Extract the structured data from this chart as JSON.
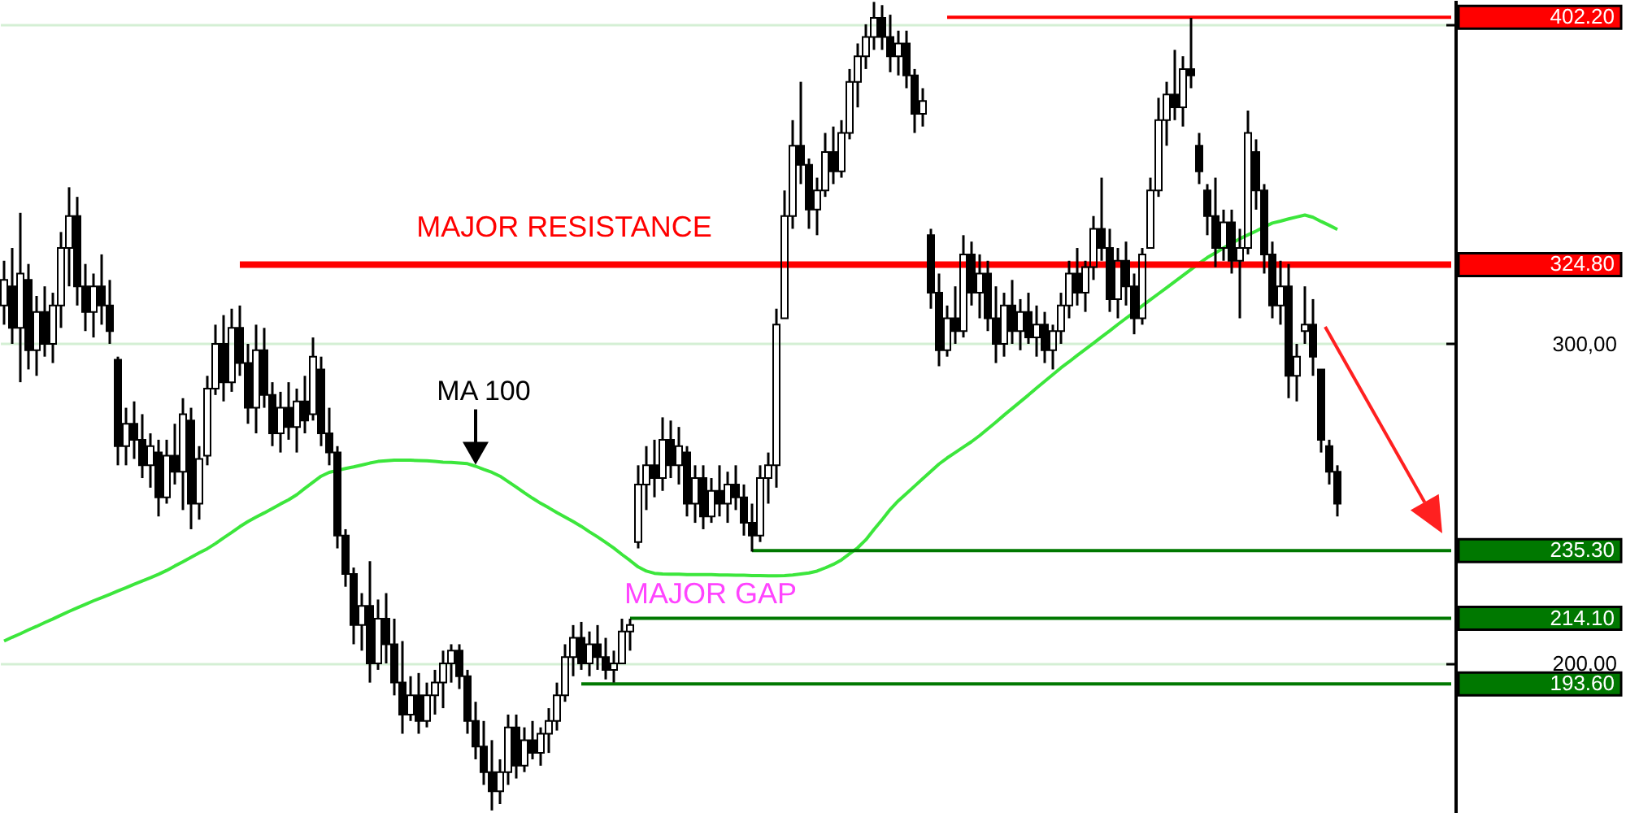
{
  "chart_data": {
    "type": "candlestick",
    "color": "#000000",
    "ylim": [
      153.2,
      407.6
    ],
    "yticks": [
      {
        "value": 200,
        "label": "200,00"
      },
      {
        "value": 300,
        "label": "300,00"
      },
      {
        "value": 400,
        "label": null
      }
    ],
    "grid": true,
    "annotations": [
      {
        "text": "MAJOR RESISTANCE",
        "y": 324.8
      },
      "MAJOR GAP"
    ],
    "categories": [
      null,
      null,
      null,
      null,
      null,
      null,
      null,
      null,
      null,
      null,
      null,
      null,
      null,
      null,
      null,
      null,
      null,
      null,
      null,
      null,
      null,
      null,
      null,
      null,
      null,
      null,
      null,
      null,
      null,
      null,
      null,
      null,
      null,
      null,
      null,
      null,
      null,
      null,
      null,
      null,
      null,
      null,
      null,
      null,
      null,
      null,
      null,
      null,
      null,
      null,
      null,
      null,
      null,
      null,
      null,
      null,
      null,
      null,
      null,
      null,
      null,
      null,
      null,
      null,
      null,
      null,
      null,
      null,
      null,
      null,
      null,
      null,
      null,
      null,
      null,
      null,
      null,
      null,
      null,
      null,
      null,
      null,
      null,
      null,
      null,
      null,
      null,
      null,
      null,
      null,
      null,
      null,
      null,
      null,
      null,
      null,
      null,
      null,
      null,
      null,
      null,
      null,
      null,
      null,
      null,
      null,
      null,
      null,
      null,
      null,
      null,
      null,
      null,
      null,
      null,
      null,
      null,
      null,
      null,
      null,
      null,
      null,
      null,
      null,
      null,
      null,
      null,
      null,
      null,
      null,
      null,
      null,
      null,
      null,
      null,
      null,
      null,
      null,
      null,
      null,
      null,
      null,
      null,
      null,
      null,
      null,
      null,
      null,
      null,
      null,
      null,
      null,
      null,
      null,
      null,
      null,
      null,
      null,
      null,
      null,
      null,
      null,
      null,
      null,
      null,
      null,
      null,
      null,
      null,
      null,
      null,
      null,
      null,
      null,
      null,
      null,
      null,
      null,
      null
    ],
    "ohlc": [
      [
        312,
        326,
        306,
        320
      ],
      [
        318,
        330,
        300,
        305
      ],
      [
        305,
        341,
        288,
        322
      ],
      [
        320,
        325,
        292,
        298
      ],
      [
        298,
        315,
        290,
        310
      ],
      [
        310,
        318,
        296,
        300
      ],
      [
        300,
        316,
        294,
        312
      ],
      [
        312,
        335,
        305,
        330
      ],
      [
        330,
        349,
        318,
        340
      ],
      [
        340,
        346,
        312,
        318
      ],
      [
        318,
        325,
        304,
        310
      ],
      [
        310,
        322,
        302,
        318
      ],
      [
        318,
        328,
        306,
        312
      ],
      [
        312,
        320,
        300,
        304
      ],
      [
        295,
        296,
        262,
        268
      ],
      [
        268,
        280,
        262,
        275
      ],
      [
        275,
        282,
        264,
        270
      ],
      [
        270,
        278,
        258,
        262
      ],
      [
        262,
        272,
        255,
        268
      ],
      [
        266,
        270,
        246,
        252
      ],
      [
        252,
        270,
        250,
        265
      ],
      [
        265,
        275,
        256,
        260
      ],
      [
        260,
        283,
        248,
        278
      ],
      [
        276,
        280,
        242,
        250
      ],
      [
        250,
        268,
        245,
        264
      ],
      [
        265,
        290,
        262,
        286
      ],
      [
        286,
        306,
        284,
        300
      ],
      [
        300,
        309,
        282,
        288
      ],
      [
        288,
        311,
        285,
        305
      ],
      [
        305,
        312,
        290,
        294
      ],
      [
        294,
        300,
        275,
        280
      ],
      [
        280,
        306,
        272,
        298
      ],
      [
        298,
        305,
        280,
        284
      ],
      [
        284,
        288,
        268,
        272
      ],
      [
        272,
        285,
        266,
        280
      ],
      [
        280,
        288,
        270,
        274
      ],
      [
        274,
        286,
        266,
        282
      ],
      [
        282,
        290,
        272,
        276
      ],
      [
        278,
        302,
        276,
        296
      ],
      [
        292,
        296,
        268,
        272
      ],
      [
        272,
        280,
        262,
        266
      ],
      [
        266,
        268,
        236,
        240
      ],
      [
        240,
        242,
        224,
        228
      ],
      [
        228,
        230,
        206,
        212
      ],
      [
        212,
        222,
        204,
        218
      ],
      [
        218,
        232,
        194,
        200
      ],
      [
        200,
        220,
        198,
        214
      ],
      [
        214,
        222,
        200,
        206
      ],
      [
        206,
        214,
        190,
        194
      ],
      [
        194,
        207,
        178,
        184
      ],
      [
        184,
        196,
        182,
        190
      ],
      [
        190,
        197,
        178,
        182
      ],
      [
        182,
        194,
        180,
        190
      ],
      [
        190,
        198,
        184,
        194
      ],
      [
        194,
        204,
        186,
        200
      ],
      [
        200,
        206,
        194,
        204
      ],
      [
        204,
        206,
        192,
        196
      ],
      [
        196,
        198,
        178,
        182
      ],
      [
        182,
        188,
        170,
        174
      ],
      [
        174,
        182,
        162,
        166
      ],
      [
        166,
        176,
        154,
        160
      ],
      [
        160,
        170,
        156,
        166
      ],
      [
        166,
        184,
        162,
        180
      ],
      [
        180,
        184,
        164,
        168
      ],
      [
        168,
        180,
        166,
        176
      ],
      [
        176,
        182,
        170,
        172
      ],
      [
        172,
        180,
        168,
        178
      ],
      [
        178,
        186,
        172,
        182
      ],
      [
        182,
        194,
        179,
        190
      ],
      [
        190,
        206,
        188,
        202
      ],
      [
        202,
        212,
        196,
        208
      ],
      [
        208,
        213,
        198,
        200
      ],
      [
        200,
        210,
        196,
        206
      ],
      [
        206,
        212,
        198,
        202
      ],
      [
        202,
        208,
        195,
        198
      ],
      [
        198,
        204,
        194,
        200
      ],
      [
        200,
        214,
        200,
        210
      ],
      [
        210,
        214,
        204,
        212
      ],
      [
        238,
        262,
        236,
        256
      ],
      [
        256,
        268,
        248,
        262
      ],
      [
        262,
        270,
        252,
        258
      ],
      [
        258,
        277,
        254,
        270
      ],
      [
        270,
        276,
        258,
        262
      ],
      [
        262,
        274,
        256,
        268
      ],
      [
        266,
        268,
        246,
        250
      ],
      [
        250,
        262,
        244,
        258
      ],
      [
        258,
        262,
        242,
        246
      ],
      [
        246,
        258,
        244,
        254
      ],
      [
        254,
        262,
        246,
        250
      ],
      [
        250,
        260,
        244,
        256
      ],
      [
        256,
        262,
        248,
        252
      ],
      [
        252,
        256,
        240,
        244
      ],
      [
        244,
        250,
        235,
        240
      ],
      [
        240,
        262,
        238,
        258
      ],
      [
        258,
        266,
        250,
        262
      ],
      [
        262,
        311,
        255,
        306
      ],
      [
        308,
        348,
        308,
        340
      ],
      [
        340,
        370,
        336,
        362
      ],
      [
        362,
        382,
        350,
        356
      ],
      [
        356,
        358,
        336,
        342
      ],
      [
        342,
        352,
        334,
        348
      ],
      [
        348,
        366,
        346,
        360
      ],
      [
        360,
        368,
        350,
        354
      ],
      [
        354,
        370,
        352,
        366
      ],
      [
        366,
        386,
        364,
        382
      ],
      [
        382,
        394,
        374,
        390
      ],
      [
        390,
        400,
        386,
        396
      ],
      [
        396,
        407,
        392,
        402
      ],
      [
        402,
        406,
        392,
        396
      ],
      [
        396,
        403,
        385,
        390
      ],
      [
        390,
        398,
        384,
        394
      ],
      [
        394,
        398,
        380,
        384
      ],
      [
        384,
        386,
        366,
        372
      ],
      [
        372,
        380,
        368,
        376
      ],
      [
        334,
        336,
        311,
        316
      ],
      [
        316,
        322,
        293,
        298
      ],
      [
        298,
        312,
        296,
        308
      ],
      [
        308,
        318,
        300,
        304
      ],
      [
        304,
        334,
        302,
        328
      ],
      [
        328,
        332,
        312,
        316
      ],
      [
        316,
        328,
        308,
        322
      ],
      [
        322,
        326,
        304,
        308
      ],
      [
        308,
        318,
        294,
        300
      ],
      [
        300,
        316,
        296,
        312
      ],
      [
        312,
        320,
        300,
        304
      ],
      [
        304,
        314,
        298,
        310
      ],
      [
        310,
        316,
        300,
        302
      ],
      [
        302,
        312,
        296,
        306
      ],
      [
        306,
        310,
        294,
        298
      ],
      [
        298,
        306,
        292,
        304
      ],
      [
        304,
        316,
        300,
        312
      ],
      [
        312,
        326,
        308,
        322
      ],
      [
        322,
        330,
        312,
        316
      ],
      [
        316,
        326,
        310,
        324
      ],
      [
        324,
        340,
        320,
        336
      ],
      [
        336,
        352,
        326,
        330
      ],
      [
        330,
        336,
        310,
        314
      ],
      [
        314,
        330,
        308,
        326
      ],
      [
        326,
        332,
        312,
        318
      ],
      [
        318,
        322,
        303,
        308
      ],
      [
        308,
        330,
        306,
        328
      ],
      [
        330,
        352,
        330,
        348
      ],
      [
        348,
        377,
        346,
        370
      ],
      [
        370,
        382,
        362,
        378
      ],
      [
        378,
        392,
        370,
        374
      ],
      [
        374,
        390,
        368,
        386
      ],
      [
        386,
        402,
        380,
        384
      ],
      [
        362,
        366,
        350,
        354
      ],
      [
        348,
        350,
        334,
        340
      ],
      [
        340,
        352,
        324,
        330
      ],
      [
        330,
        342,
        326,
        338
      ],
      [
        338,
        342,
        322,
        326
      ],
      [
        326,
        336,
        308,
        330
      ],
      [
        330,
        373,
        328,
        366
      ],
      [
        360,
        364,
        342,
        348
      ],
      [
        348,
        350,
        322,
        328
      ],
      [
        328,
        332,
        308,
        312
      ],
      [
        312,
        326,
        306,
        318
      ],
      [
        318,
        325,
        283,
        290
      ],
      [
        290,
        300,
        282,
        296
      ],
      [
        304,
        318,
        300,
        306
      ],
      [
        306,
        314,
        290,
        296
      ],
      [
        292,
        292,
        266,
        270
      ],
      [
        268,
        270,
        256,
        260
      ],
      [
        260,
        262,
        246,
        250
      ],
      null,
      null,
      null,
      null,
      null,
      null,
      null,
      null,
      null,
      null,
      null,
      null,
      null,
      null
    ],
    "series": [
      {
        "type": "line",
        "name": "MA 100",
        "color": "#3ce63c",
        "values": [
          207.0,
          208.2,
          209.3,
          210.5,
          211.6,
          212.8,
          213.9,
          215.1,
          216.3,
          217.4,
          218.5,
          219.6,
          220.6,
          221.6,
          222.7,
          223.7,
          224.8,
          225.8,
          226.8,
          227.9,
          229.1,
          230.5,
          231.8,
          233.2,
          234.6,
          235.9,
          237.5,
          239.3,
          241.0,
          242.8,
          244.4,
          245.8,
          247.1,
          248.5,
          249.9,
          251.2,
          252.8,
          254.8,
          256.7,
          258.6,
          259.8,
          260.4,
          261.0,
          261.5,
          262.1,
          262.7,
          263.2,
          263.4,
          263.6,
          263.6,
          263.6,
          263.5,
          263.4,
          263.2,
          263.0,
          262.9,
          262.7,
          262.5,
          261.7,
          260.7,
          259.8,
          258.6,
          256.9,
          255.2,
          253.4,
          251.7,
          250.1,
          248.7,
          247.2,
          245.8,
          244.4,
          242.9,
          241.2,
          239.6,
          237.9,
          236.1,
          234.1,
          232.2,
          230.2,
          228.9,
          228.2,
          228.0,
          227.9,
          227.9,
          227.8,
          227.8,
          227.8,
          227.8,
          227.7,
          227.7,
          227.6,
          227.6,
          227.5,
          227.5,
          227.4,
          227.4,
          227.5,
          227.7,
          228.0,
          228.3,
          228.9,
          229.9,
          231.0,
          232.4,
          234.3,
          236.2,
          238.7,
          241.9,
          245.0,
          248.2,
          250.9,
          253.2,
          255.5,
          257.8,
          260.1,
          262.4,
          264.3,
          266.0,
          267.7,
          269.4,
          271.3,
          273.4,
          275.5,
          277.7,
          279.8,
          281.9,
          284.0,
          286.2,
          288.3,
          290.4,
          292.5,
          294.4,
          296.4,
          298.3,
          300.2,
          302.2,
          304.1,
          306.1,
          308.0,
          309.9,
          311.9,
          313.8,
          315.7,
          317.6,
          319.5,
          321.4,
          323.3,
          325.2,
          327.0,
          328.5,
          330.0,
          331.5,
          332.9,
          334.1,
          335.3,
          336.6,
          337.8,
          338.4,
          339.1,
          339.7,
          340.3,
          339.6,
          338.3,
          337.1,
          335.8,
          null,
          null,
          null,
          null,
          null,
          null,
          null,
          null,
          null,
          null,
          null,
          null,
          null,
          null
        ]
      },
      {
        "type": "line",
        "name": "402.20",
        "color": "#ff0000",
        "values": [
          null,
          null,
          null,
          null,
          null,
          null,
          null,
          null,
          null,
          null,
          null,
          null,
          null,
          null,
          null,
          null,
          null,
          null,
          null,
          null,
          null,
          null,
          null,
          null,
          null,
          null,
          null,
          null,
          null,
          null,
          null,
          null,
          null,
          null,
          null,
          null,
          null,
          null,
          null,
          null,
          null,
          null,
          null,
          null,
          null,
          null,
          null,
          null,
          null,
          null,
          null,
          null,
          null,
          null,
          null,
          null,
          null,
          null,
          null,
          null,
          null,
          null,
          null,
          null,
          null,
          null,
          null,
          null,
          null,
          null,
          null,
          null,
          null,
          null,
          null,
          null,
          null,
          null,
          null,
          null,
          null,
          null,
          null,
          null,
          null,
          null,
          null,
          null,
          null,
          null,
          null,
          null,
          null,
          null,
          null,
          null,
          null,
          null,
          null,
          null,
          null,
          null,
          null,
          null,
          null,
          null,
          null,
          null,
          null,
          null,
          null,
          null,
          null,
          null,
          null,
          null,
          402.2,
          402.2,
          402.2,
          402.2,
          402.2,
          402.2,
          402.2,
          402.2,
          402.2,
          402.2,
          402.2,
          402.2,
          402.2,
          402.2,
          402.2,
          402.2,
          402.2,
          402.2,
          402.2,
          402.2,
          402.2,
          402.2,
          402.2,
          402.2,
          402.2,
          402.2,
          402.2,
          402.2,
          402.2,
          402.2,
          402.2,
          402.2,
          402.2,
          402.2,
          402.2,
          402.2,
          402.2,
          402.2,
          402.2,
          402.2,
          402.2,
          402.2,
          402.2,
          402.2,
          402.2,
          402.2,
          402.2,
          402.2,
          402.2,
          402.2,
          402.2,
          402.2,
          402.2,
          402.2,
          402.2,
          402.2,
          402.2,
          402.2,
          402.2,
          402.2,
          402.2,
          402.2,
          402.2
        ]
      },
      {
        "type": "line",
        "name": "324.80",
        "color": "#ff0000",
        "values": [
          null,
          null,
          null,
          null,
          null,
          null,
          null,
          null,
          null,
          null,
          null,
          null,
          null,
          null,
          null,
          null,
          null,
          null,
          null,
          null,
          null,
          null,
          null,
          null,
          null,
          null,
          null,
          null,
          null,
          324.8,
          324.8,
          324.8,
          324.8,
          324.8,
          324.8,
          324.8,
          324.8,
          324.8,
          324.8,
          324.8,
          324.8,
          324.8,
          324.8,
          324.8,
          324.8,
          324.8,
          324.8,
          324.8,
          324.8,
          324.8,
          324.8,
          324.8,
          324.8,
          324.8,
          324.8,
          324.8,
          324.8,
          324.8,
          324.8,
          324.8,
          324.8,
          324.8,
          324.8,
          324.8,
          324.8,
          324.8,
          324.8,
          324.8,
          324.8,
          324.8,
          324.8,
          324.8,
          324.8,
          324.8,
          324.8,
          324.8,
          324.8,
          324.8,
          324.8,
          324.8,
          324.8,
          324.8,
          324.8,
          324.8,
          324.8,
          324.8,
          324.8,
          324.8,
          324.8,
          324.8,
          324.8,
          324.8,
          324.8,
          324.8,
          324.8,
          324.8,
          324.8,
          324.8,
          324.8,
          324.8,
          324.8,
          324.8,
          324.8,
          324.8,
          324.8,
          324.8,
          324.8,
          324.8,
          324.8,
          324.8,
          324.8,
          324.8,
          324.8,
          324.8,
          324.8,
          324.8,
          324.8,
          324.8,
          324.8,
          324.8,
          324.8,
          324.8,
          324.8,
          324.8,
          324.8,
          324.8,
          324.8,
          324.8,
          324.8,
          324.8,
          324.8,
          324.8,
          324.8,
          324.8,
          324.8,
          324.8,
          324.8,
          324.8,
          324.8,
          324.8,
          324.8,
          324.8,
          324.8,
          324.8,
          324.8,
          324.8,
          324.8,
          324.8,
          324.8,
          324.8,
          324.8,
          324.8,
          324.8,
          324.8,
          324.8,
          324.8,
          324.8,
          324.8,
          324.8,
          324.8,
          324.8,
          324.8,
          324.8,
          324.8,
          324.8,
          324.8,
          324.8,
          324.8,
          324.8,
          324.8,
          324.8,
          324.8,
          324.8,
          324.8,
          324.8,
          324.8,
          324.8,
          324.8,
          324.8
        ]
      },
      {
        "type": "line",
        "name": "235.30",
        "color": "#007800",
        "values": [
          null,
          null,
          null,
          null,
          null,
          null,
          null,
          null,
          null,
          null,
          null,
          null,
          null,
          null,
          null,
          null,
          null,
          null,
          null,
          null,
          null,
          null,
          null,
          null,
          null,
          null,
          null,
          null,
          null,
          null,
          null,
          null,
          null,
          null,
          null,
          null,
          null,
          null,
          null,
          null,
          null,
          null,
          null,
          null,
          null,
          null,
          null,
          null,
          null,
          null,
          null,
          null,
          null,
          null,
          null,
          null,
          null,
          null,
          null,
          null,
          null,
          null,
          null,
          null,
          null,
          null,
          null,
          null,
          null,
          null,
          null,
          null,
          null,
          null,
          null,
          null,
          null,
          null,
          null,
          null,
          null,
          null,
          null,
          null,
          null,
          null,
          null,
          null,
          null,
          null,
          null,
          null,
          235.3,
          235.3,
          235.3,
          235.3,
          235.3,
          235.3,
          235.3,
          235.3,
          235.3,
          235.3,
          235.3,
          235.3,
          235.3,
          235.3,
          235.3,
          235.3,
          235.3,
          235.3,
          235.3,
          235.3,
          235.3,
          235.3,
          235.3,
          235.3,
          235.3,
          235.3,
          235.3,
          235.3,
          235.3,
          235.3,
          235.3,
          235.3,
          235.3,
          235.3,
          235.3,
          235.3,
          235.3,
          235.3,
          235.3,
          235.3,
          235.3,
          235.3,
          235.3,
          235.3,
          235.3,
          235.3,
          235.3,
          235.3,
          235.3,
          235.3,
          235.3,
          235.3,
          235.3,
          235.3,
          235.3,
          235.3,
          235.3,
          235.3,
          235.3,
          235.3,
          235.3,
          235.3,
          235.3,
          235.3,
          235.3,
          235.3,
          235.3,
          235.3,
          235.3,
          235.3,
          235.3,
          235.3,
          235.3,
          235.3,
          235.3,
          235.3,
          235.3,
          235.3,
          235.3,
          235.3,
          235.3,
          235.3,
          235.3,
          235.3,
          235.3,
          235.3,
          235.3
        ]
      },
      {
        "type": "line",
        "name": "214.10",
        "color": "#007800",
        "values": [
          null,
          null,
          null,
          null,
          null,
          null,
          null,
          null,
          null,
          null,
          null,
          null,
          null,
          null,
          null,
          null,
          null,
          null,
          null,
          null,
          null,
          null,
          null,
          null,
          null,
          null,
          null,
          null,
          null,
          null,
          null,
          null,
          null,
          null,
          null,
          null,
          null,
          null,
          null,
          null,
          null,
          null,
          null,
          null,
          null,
          null,
          null,
          null,
          null,
          null,
          null,
          null,
          null,
          null,
          null,
          null,
          null,
          null,
          null,
          null,
          null,
          null,
          null,
          null,
          null,
          null,
          null,
          null,
          null,
          null,
          null,
          null,
          null,
          null,
          null,
          null,
          null,
          214.1,
          214.1,
          214.1,
          214.1,
          214.1,
          214.1,
          214.1,
          214.1,
          214.1,
          214.1,
          214.1,
          214.1,
          214.1,
          214.1,
          214.1,
          214.1,
          214.1,
          214.1,
          214.1,
          214.1,
          214.1,
          214.1,
          214.1,
          214.1,
          214.1,
          214.1,
          214.1,
          214.1,
          214.1,
          214.1,
          214.1,
          214.1,
          214.1,
          214.1,
          214.1,
          214.1,
          214.1,
          214.1,
          214.1,
          214.1,
          214.1,
          214.1,
          214.1,
          214.1,
          214.1,
          214.1,
          214.1,
          214.1,
          214.1,
          214.1,
          214.1,
          214.1,
          214.1,
          214.1,
          214.1,
          214.1,
          214.1,
          214.1,
          214.1,
          214.1,
          214.1,
          214.1,
          214.1,
          214.1,
          214.1,
          214.1,
          214.1,
          214.1,
          214.1,
          214.1,
          214.1,
          214.1,
          214.1,
          214.1,
          214.1,
          214.1,
          214.1,
          214.1,
          214.1,
          214.1,
          214.1,
          214.1,
          214.1,
          214.1,
          214.1,
          214.1,
          214.1,
          214.1,
          214.1,
          214.1,
          214.1,
          214.1,
          214.1,
          214.1,
          214.1,
          214.1,
          214.1,
          214.1,
          214.1,
          214.1,
          214.1,
          214.1
        ]
      },
      {
        "type": "line",
        "name": "193.60",
        "color": "#007800",
        "values": [
          null,
          null,
          null,
          null,
          null,
          null,
          null,
          null,
          null,
          null,
          null,
          null,
          null,
          null,
          null,
          null,
          null,
          null,
          null,
          null,
          null,
          null,
          null,
          null,
          null,
          null,
          null,
          null,
          null,
          null,
          null,
          null,
          null,
          null,
          null,
          null,
          null,
          null,
          null,
          null,
          null,
          null,
          null,
          null,
          null,
          null,
          null,
          null,
          null,
          null,
          null,
          null,
          null,
          null,
          null,
          null,
          null,
          null,
          null,
          null,
          null,
          null,
          null,
          null,
          null,
          null,
          null,
          null,
          null,
          null,
          null,
          193.6,
          193.6,
          193.6,
          193.6,
          193.6,
          193.6,
          193.6,
          193.6,
          193.6,
          193.6,
          193.6,
          193.6,
          193.6,
          193.6,
          193.6,
          193.6,
          193.6,
          193.6,
          193.6,
          193.6,
          193.6,
          193.6,
          193.6,
          193.6,
          193.6,
          193.6,
          193.6,
          193.6,
          193.6,
          193.6,
          193.6,
          193.6,
          193.6,
          193.6,
          193.6,
          193.6,
          193.6,
          193.6,
          193.6,
          193.6,
          193.6,
          193.6,
          193.6,
          193.6,
          193.6,
          193.6,
          193.6,
          193.6,
          193.6,
          193.6,
          193.6,
          193.6,
          193.6,
          193.6,
          193.6,
          193.6,
          193.6,
          193.6,
          193.6,
          193.6,
          193.6,
          193.6,
          193.6,
          193.6,
          193.6,
          193.6,
          193.6,
          193.6,
          193.6,
          193.6,
          193.6,
          193.6,
          193.6,
          193.6,
          193.6,
          193.6,
          193.6,
          193.6,
          193.6,
          193.6,
          193.6,
          193.6,
          193.6,
          193.6,
          193.6,
          193.6,
          193.6,
          193.6,
          193.6,
          193.6,
          193.6,
          193.6,
          193.6,
          193.6,
          193.6,
          193.6,
          193.6,
          193.6,
          193.6,
          193.6,
          193.6,
          193.6,
          193.6,
          193.6,
          193.6,
          193.6,
          193.6,
          193.6
        ]
      }
    ]
  }
}
